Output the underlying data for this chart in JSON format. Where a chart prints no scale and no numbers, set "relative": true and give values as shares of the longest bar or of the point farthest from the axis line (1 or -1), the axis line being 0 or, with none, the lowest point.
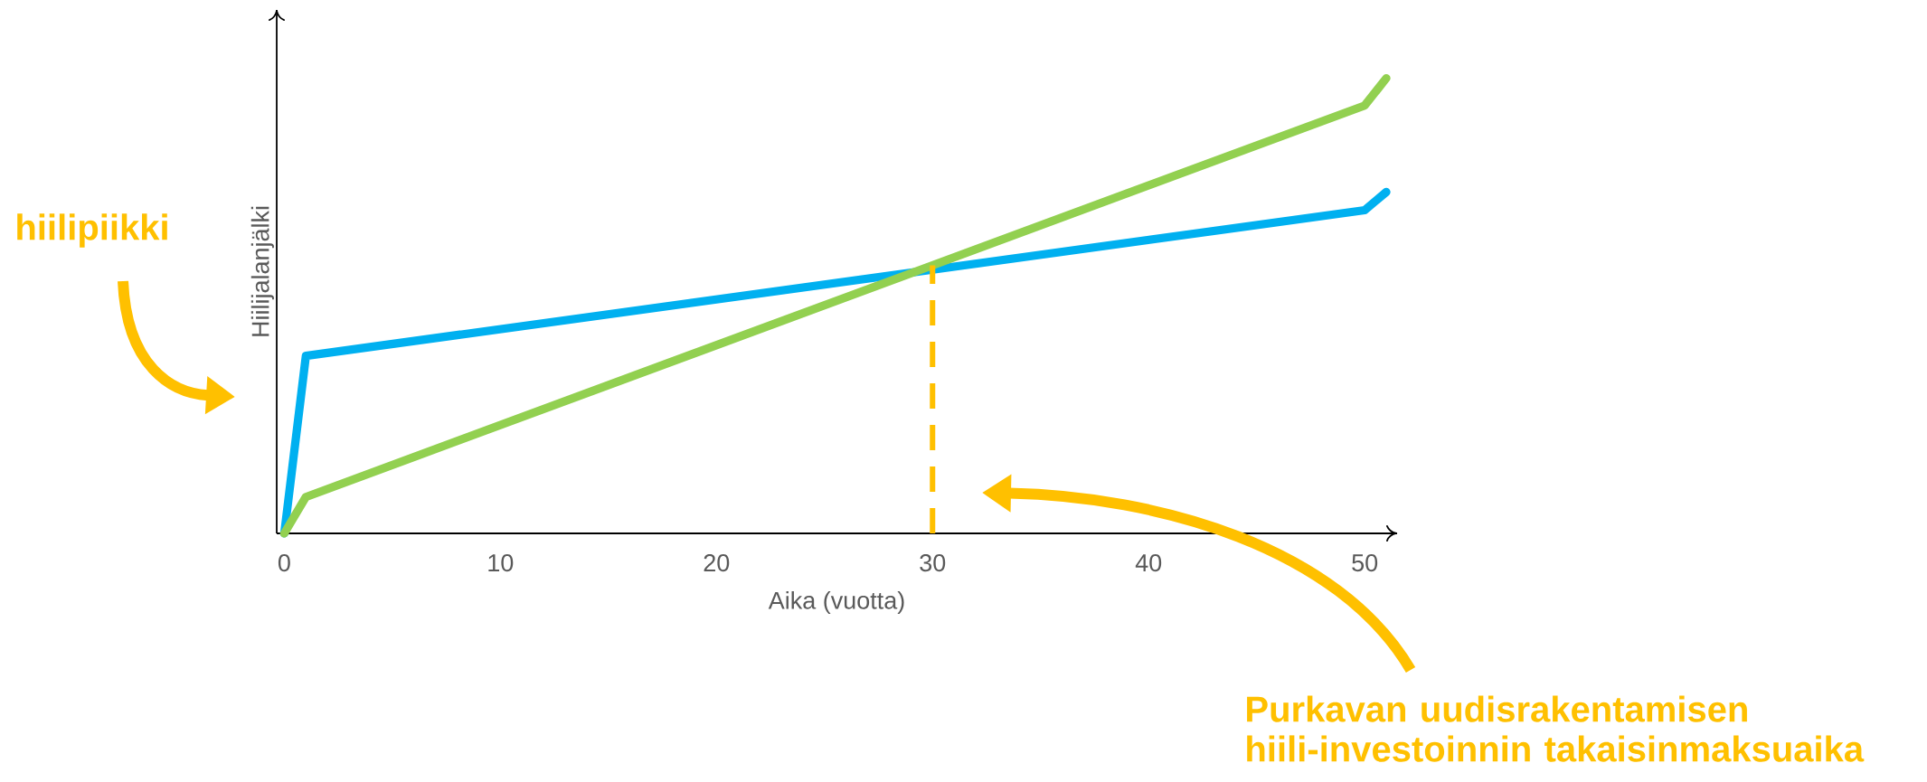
{
  "chart_data": {
    "type": "line",
    "relative": true,
    "xlabel": "Aika (vuotta)",
    "ylabel": "Hiilijalanjälki",
    "xlim": [
      -0.35,
      51.5
    ],
    "xticks": [
      0,
      10,
      20,
      30,
      40,
      50
    ],
    "line_style": "solid",
    "series": [
      {
        "color": "#00b0f0",
        "x": [
          0,
          1,
          50,
          51
        ],
        "values": [
          0,
          0.39,
          0.71,
          0.75
        ]
      },
      {
        "color": "#92d050",
        "x": [
          0,
          1,
          50,
          51
        ],
        "values": [
          0,
          0.08,
          0.94,
          1
        ]
      }
    ],
    "ref_lines": [
      {
        "axis": "x",
        "value": 30,
        "color": "#ffc000",
        "line_style": "dashed"
      }
    ],
    "annotations": [
      "hiilipiikki",
      "Purkavan uudisrakentamisen hiili-investoinnin takaisinmaksuaika"
    ]
  }
}
